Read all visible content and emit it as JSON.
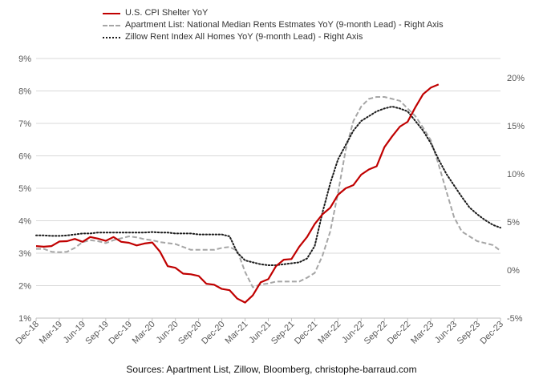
{
  "chart_data": {
    "type": "line",
    "x": [
      "Dec-18",
      "Jan-19",
      "Feb-19",
      "Mar-19",
      "Apr-19",
      "May-19",
      "Jun-19",
      "Jul-19",
      "Aug-19",
      "Sep-19",
      "Oct-19",
      "Nov-19",
      "Dec-19",
      "Jan-20",
      "Feb-20",
      "Mar-20",
      "Apr-20",
      "May-20",
      "Jun-20",
      "Jul-20",
      "Aug-20",
      "Sep-20",
      "Oct-20",
      "Nov-20",
      "Dec-20",
      "Jan-21",
      "Feb-21",
      "Mar-21",
      "Apr-21",
      "May-21",
      "Jun-21",
      "Jul-21",
      "Aug-21",
      "Sep-21",
      "Oct-21",
      "Nov-21",
      "Dec-21",
      "Jan-22",
      "Feb-22",
      "Mar-22",
      "Apr-22",
      "May-22",
      "Jun-22",
      "Jul-22",
      "Aug-22",
      "Sep-22",
      "Oct-22",
      "Nov-22",
      "Dec-22",
      "Jan-23",
      "Feb-23",
      "Mar-23",
      "Apr-23",
      "May-23",
      "Jun-23",
      "Jul-23",
      "Aug-23",
      "Sep-23",
      "Oct-23",
      "Nov-23",
      "Dec-23"
    ],
    "x_tick_labels": [
      "Dec-18",
      "Mar-19",
      "Jun-19",
      "Sep-19",
      "Dec-19",
      "Mar-20",
      "Jun-20",
      "Sep-20",
      "Dec-20",
      "Mar-21",
      "Jun-21",
      "Sep-21",
      "Dec-21",
      "Mar-22",
      "Jun-22",
      "Sep-22",
      "Dec-22",
      "Mar-23",
      "Jun-23",
      "Sep-23",
      "Dec-23"
    ],
    "y_left": {
      "ticks": [
        "1%",
        "2%",
        "3%",
        "4%",
        "5%",
        "6%",
        "7%",
        "8%",
        "9%"
      ],
      "range": [
        1,
        9
      ]
    },
    "y_right": {
      "ticks": [
        "-5%",
        "0%",
        "5%",
        "10%",
        "15%",
        "20%"
      ],
      "range": [
        -5,
        22
      ]
    },
    "grid": "horizontal",
    "legend_position": "top-left",
    "series": [
      {
        "name": "U.S. CPI Shelter YoY",
        "axis": "left",
        "color": "#c00000",
        "style": "solid",
        "values": [
          3.22,
          3.2,
          3.22,
          3.36,
          3.37,
          3.44,
          3.35,
          3.5,
          3.45,
          3.38,
          3.5,
          3.35,
          3.32,
          3.24,
          3.3,
          3.33,
          3.05,
          2.6,
          2.55,
          2.37,
          2.35,
          2.3,
          2.06,
          2.03,
          1.9,
          1.86,
          1.6,
          1.48,
          1.7,
          2.1,
          2.2,
          2.6,
          2.8,
          2.82,
          3.2,
          3.5,
          3.9,
          4.2,
          4.4,
          4.8,
          5.0,
          5.1,
          5.42,
          5.58,
          5.68,
          6.27,
          6.6,
          6.9,
          7.05,
          7.5,
          7.9,
          8.1,
          8.2,
          null,
          null,
          null,
          null,
          null,
          null,
          null,
          null
        ]
      },
      {
        "name": "Apartment List: National Median Rents Estmates YoY (9-month Lead) - Right Axis",
        "axis": "right",
        "color": "#a6a6a6",
        "style": "dashed",
        "values": [
          2.2,
          2.2,
          1.9,
          1.85,
          1.9,
          2.3,
          2.9,
          3.1,
          3.0,
          2.8,
          3.1,
          3.3,
          3.5,
          3.4,
          3.2,
          3.1,
          2.9,
          2.8,
          2.7,
          2.4,
          2.1,
          2.1,
          2.1,
          2.1,
          2.3,
          2.4,
          2.0,
          -0.2,
          -1.8,
          -1.5,
          -1.4,
          -1.2,
          -1.2,
          -1.2,
          -1.2,
          -0.8,
          -0.3,
          1.5,
          4.0,
          8.0,
          12.5,
          15.5,
          17.0,
          17.8,
          18.0,
          18.0,
          17.8,
          17.6,
          16.8,
          16.0,
          14.8,
          13.5,
          11.0,
          8.2,
          5.5,
          4.0,
          3.5,
          3.0,
          2.8,
          2.6,
          2.0
        ]
      },
      {
        "name": "Zillow Rent Index All Homes YoY (9-month Lead) - Right Axis",
        "axis": "right",
        "color": "#1a1a1a",
        "style": "dotted",
        "values": [
          3.6,
          3.6,
          3.55,
          3.55,
          3.6,
          3.7,
          3.8,
          3.8,
          3.9,
          3.9,
          3.9,
          3.9,
          3.9,
          3.9,
          3.9,
          3.95,
          3.9,
          3.9,
          3.8,
          3.8,
          3.8,
          3.7,
          3.7,
          3.7,
          3.7,
          3.5,
          1.8,
          1.0,
          0.8,
          0.6,
          0.5,
          0.5,
          0.6,
          0.7,
          0.8,
          1.2,
          2.5,
          6.0,
          9.0,
          11.5,
          13.0,
          14.5,
          15.5,
          16.0,
          16.5,
          16.8,
          17.0,
          16.8,
          16.5,
          15.5,
          14.5,
          13.2,
          11.5,
          10.0,
          8.8,
          7.6,
          6.5,
          5.8,
          5.2,
          4.7,
          4.4
        ]
      }
    ]
  },
  "legend": {
    "items": [
      "U.S. CPI Shelter YoY",
      "Apartment List: National Median Rents Estmates YoY (9-month Lead) - Right Axis",
      "Zillow Rent Index All Homes YoY (9-month Lead) - Right Axis"
    ]
  },
  "source": "Sources: Apartment List, Zillow, Bloomberg, christophe-barraud.com"
}
